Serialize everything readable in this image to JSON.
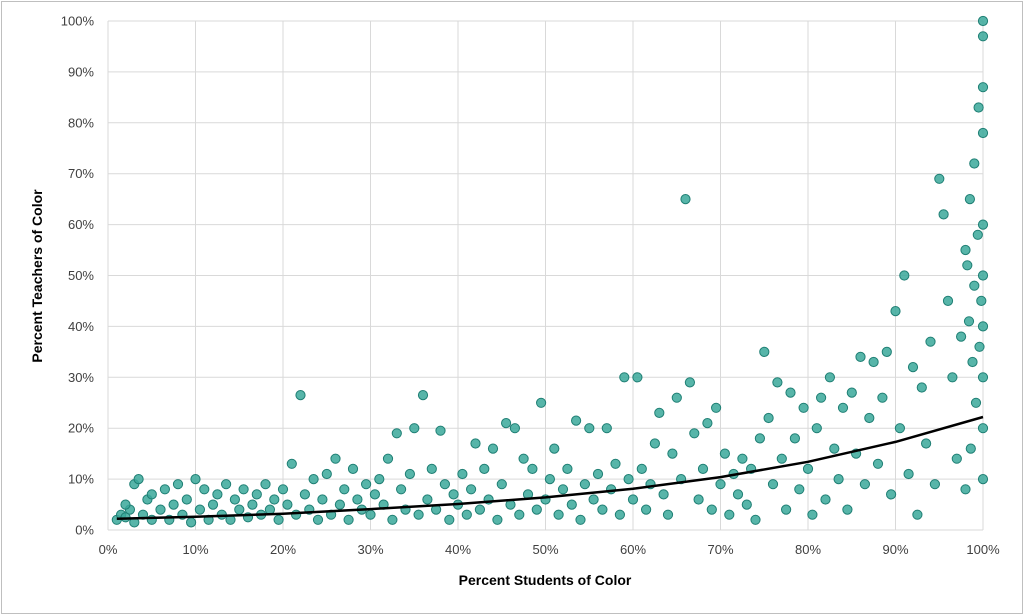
{
  "chart_data": {
    "type": "scatter",
    "title": "",
    "xlabel": "Percent Students of Color",
    "ylabel": "Percent Teachers of Color",
    "xlim": [
      0,
      100
    ],
    "ylim": [
      0,
      100
    ],
    "x_ticks": [
      "0%",
      "10%",
      "20%",
      "30%",
      "40%",
      "50%",
      "60%",
      "70%",
      "80%",
      "90%",
      "100%"
    ],
    "y_ticks": [
      "0%",
      "10%",
      "20%",
      "30%",
      "40%",
      "50%",
      "60%",
      "70%",
      "80%",
      "90%",
      "100%"
    ],
    "grid": true,
    "legend": "none",
    "marker_color": "#3aa89a",
    "marker_edge_color": "#1f7f74",
    "trendline": {
      "type": "exponential",
      "color": "#000000",
      "points": [
        [
          1,
          2.2
        ],
        [
          10,
          2.6
        ],
        [
          20,
          3.2
        ],
        [
          30,
          4.1
        ],
        [
          40,
          5.1
        ],
        [
          50,
          6.4
        ],
        [
          60,
          8.1
        ],
        [
          70,
          10.4
        ],
        [
          80,
          13.4
        ],
        [
          90,
          17.3
        ],
        [
          100,
          22.2
        ]
      ]
    },
    "points": [
      [
        1,
        2
      ],
      [
        1.5,
        3
      ],
      [
        2,
        2.5
      ],
      [
        2.5,
        4
      ],
      [
        3,
        1.5
      ],
      [
        3,
        9
      ],
      [
        3.5,
        10
      ],
      [
        2,
        5
      ],
      [
        4,
        3
      ],
      [
        4.5,
        6
      ],
      [
        5,
        2
      ],
      [
        5,
        7
      ],
      [
        6,
        4
      ],
      [
        6.5,
        8
      ],
      [
        7,
        2
      ],
      [
        7.5,
        5
      ],
      [
        8,
        9
      ],
      [
        8.5,
        3
      ],
      [
        9,
        6
      ],
      [
        9.5,
        1.5
      ],
      [
        10,
        10
      ],
      [
        10.5,
        4
      ],
      [
        11,
        8
      ],
      [
        11.5,
        2
      ],
      [
        12,
        5
      ],
      [
        12.5,
        7
      ],
      [
        13,
        3
      ],
      [
        13.5,
        9
      ],
      [
        14,
        2
      ],
      [
        14.5,
        6
      ],
      [
        15,
        4
      ],
      [
        15.5,
        8
      ],
      [
        16,
        2.5
      ],
      [
        16.5,
        5
      ],
      [
        17,
        7
      ],
      [
        17.5,
        3
      ],
      [
        18,
        9
      ],
      [
        18.5,
        4
      ],
      [
        19,
        6
      ],
      [
        19.5,
        2
      ],
      [
        20,
        8
      ],
      [
        20.5,
        5
      ],
      [
        21,
        13
      ],
      [
        21.5,
        3
      ],
      [
        22,
        26.5
      ],
      [
        22.5,
        7
      ],
      [
        23,
        4
      ],
      [
        23.5,
        10
      ],
      [
        24,
        2
      ],
      [
        24.5,
        6
      ],
      [
        25,
        11
      ],
      [
        25.5,
        3
      ],
      [
        26,
        14
      ],
      [
        26.5,
        5
      ],
      [
        27,
        8
      ],
      [
        27.5,
        2
      ],
      [
        28,
        12
      ],
      [
        28.5,
        6
      ],
      [
        29,
        4
      ],
      [
        29.5,
        9
      ],
      [
        30,
        3
      ],
      [
        30.5,
        7
      ],
      [
        31,
        10
      ],
      [
        31.5,
        5
      ],
      [
        32,
        14
      ],
      [
        32.5,
        2
      ],
      [
        33,
        19
      ],
      [
        33.5,
        8
      ],
      [
        34,
        4
      ],
      [
        34.5,
        11
      ],
      [
        35,
        20
      ],
      [
        35.5,
        3
      ],
      [
        36,
        26.5
      ],
      [
        36.5,
        6
      ],
      [
        37,
        12
      ],
      [
        37.5,
        4
      ],
      [
        38,
        19.5
      ],
      [
        38.5,
        9
      ],
      [
        39,
        2
      ],
      [
        39.5,
        7
      ],
      [
        40,
        5
      ],
      [
        40.5,
        11
      ],
      [
        41,
        3
      ],
      [
        41.5,
        8
      ],
      [
        42,
        17
      ],
      [
        42.5,
        4
      ],
      [
        43,
        12
      ],
      [
        43.5,
        6
      ],
      [
        44,
        16
      ],
      [
        44.5,
        2
      ],
      [
        45,
        9
      ],
      [
        45.5,
        21
      ],
      [
        46,
        5
      ],
      [
        46.5,
        20
      ],
      [
        47,
        3
      ],
      [
        47.5,
        14
      ],
      [
        48,
        7
      ],
      [
        48.5,
        12
      ],
      [
        49,
        4
      ],
      [
        49.5,
        25
      ],
      [
        50,
        6
      ],
      [
        50.5,
        10
      ],
      [
        51,
        16
      ],
      [
        51.5,
        3
      ],
      [
        52,
        8
      ],
      [
        52.5,
        12
      ],
      [
        53,
        5
      ],
      [
        53.5,
        21.5
      ],
      [
        54,
        2
      ],
      [
        54.5,
        9
      ],
      [
        55,
        20
      ],
      [
        55.5,
        6
      ],
      [
        56,
        11
      ],
      [
        56.5,
        4
      ],
      [
        57,
        20
      ],
      [
        57.5,
        8
      ],
      [
        58,
        13
      ],
      [
        58.5,
        3
      ],
      [
        59,
        30
      ],
      [
        59.5,
        10
      ],
      [
        60,
        6
      ],
      [
        60.5,
        30
      ],
      [
        61,
        12
      ],
      [
        61.5,
        4
      ],
      [
        62,
        9
      ],
      [
        62.5,
        17
      ],
      [
        63,
        23
      ],
      [
        63.5,
        7
      ],
      [
        64,
        3
      ],
      [
        64.5,
        15
      ],
      [
        65,
        26
      ],
      [
        65.5,
        10
      ],
      [
        66,
        65
      ],
      [
        66.5,
        29
      ],
      [
        67,
        19
      ],
      [
        67.5,
        6
      ],
      [
        68,
        12
      ],
      [
        68.5,
        21
      ],
      [
        69,
        4
      ],
      [
        69.5,
        24
      ],
      [
        70,
        9
      ],
      [
        70.5,
        15
      ],
      [
        71,
        3
      ],
      [
        71.5,
        11
      ],
      [
        72,
        7
      ],
      [
        72.5,
        14
      ],
      [
        73,
        5
      ],
      [
        73.5,
        12
      ],
      [
        74,
        2
      ],
      [
        74.5,
        18
      ],
      [
        75,
        35
      ],
      [
        75.5,
        22
      ],
      [
        76,
        9
      ],
      [
        76.5,
        29
      ],
      [
        77,
        14
      ],
      [
        77.5,
        4
      ],
      [
        78,
        27
      ],
      [
        78.5,
        18
      ],
      [
        79,
        8
      ],
      [
        79.5,
        24
      ],
      [
        80,
        12
      ],
      [
        80.5,
        3
      ],
      [
        81,
        20
      ],
      [
        81.5,
        26
      ],
      [
        82,
        6
      ],
      [
        82.5,
        30
      ],
      [
        83,
        16
      ],
      [
        83.5,
        10
      ],
      [
        84,
        24
      ],
      [
        84.5,
        4
      ],
      [
        85,
        27
      ],
      [
        85.5,
        15
      ],
      [
        86,
        34
      ],
      [
        86.5,
        9
      ],
      [
        87,
        22
      ],
      [
        87.5,
        33
      ],
      [
        88,
        13
      ],
      [
        88.5,
        26
      ],
      [
        89,
        35
      ],
      [
        89.5,
        7
      ],
      [
        90,
        43
      ],
      [
        90.5,
        20
      ],
      [
        91,
        50
      ],
      [
        91.5,
        11
      ],
      [
        92,
        32
      ],
      [
        92.5,
        3
      ],
      [
        93,
        28
      ],
      [
        93.5,
        17
      ],
      [
        94,
        37
      ],
      [
        94.5,
        9
      ],
      [
        95,
        69
      ],
      [
        95.5,
        62
      ],
      [
        96,
        45
      ],
      [
        96.5,
        30
      ],
      [
        97,
        14
      ],
      [
        97.5,
        38
      ],
      [
        98,
        55
      ],
      [
        98.5,
        65
      ],
      [
        99,
        72
      ],
      [
        99.5,
        83
      ],
      [
        100,
        100
      ],
      [
        100,
        97
      ],
      [
        100,
        87
      ],
      [
        100,
        78
      ],
      [
        100,
        60
      ],
      [
        100,
        50
      ],
      [
        100,
        40
      ],
      [
        100,
        30
      ],
      [
        100,
        20
      ],
      [
        100,
        10
      ],
      [
        99.8,
        45
      ],
      [
        99.6,
        36
      ],
      [
        99.4,
        58
      ],
      [
        99.2,
        25
      ],
      [
        99,
        48
      ],
      [
        98.8,
        33
      ],
      [
        98.6,
        16
      ],
      [
        98.4,
        41
      ],
      [
        98.2,
        52
      ],
      [
        98,
        8
      ]
    ]
  }
}
